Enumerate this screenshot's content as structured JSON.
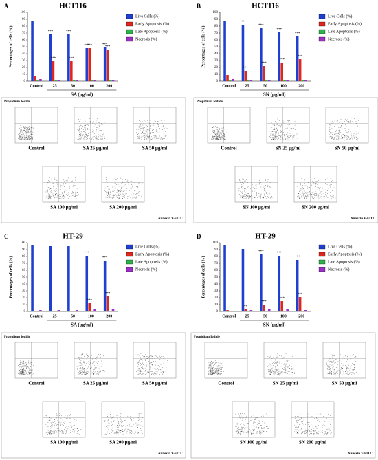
{
  "chart_data": [
    {
      "type": "bar",
      "panel": "A",
      "title": "HCT116",
      "y_label": "Percentages of cells (%)",
      "x_label": "SA (µg/ml)",
      "categories": [
        "Control",
        "25",
        "50",
        "100",
        "200"
      ],
      "ylim": [
        0,
        100
      ],
      "yticks": [
        0,
        10,
        20,
        30,
        40,
        50,
        60,
        70,
        80,
        90,
        100
      ],
      "series": [
        {
          "name": "Live Cells (%)",
          "color": "#1f3fd1",
          "values": [
            87,
            68,
            68,
            48,
            49
          ],
          "significance": [
            null,
            "***",
            "***",
            "***",
            "***"
          ]
        },
        {
          "name": "Early Apoptosis (%)",
          "color": "#e0261d",
          "values": [
            8,
            29,
            29,
            48,
            46
          ],
          "significance": [
            null,
            "***",
            "***",
            "***",
            "***"
          ]
        },
        {
          "name": "Late Apoptosis (%)",
          "color": "#2db34a",
          "values": [
            2,
            1,
            1,
            2,
            2
          ]
        },
        {
          "name": "Necrosis (%)",
          "color": "#9b2fc6",
          "values": [
            3,
            2,
            2,
            2,
            2
          ]
        }
      ]
    },
    {
      "type": "bar",
      "panel": "B",
      "title": "HCT116",
      "y_label": "Percentages of cells (%)",
      "x_label": "SN (µg/ml)",
      "categories": [
        "Control",
        "25",
        "50",
        "100",
        "200"
      ],
      "ylim": [
        0,
        100
      ],
      "yticks": [
        0,
        10,
        20,
        30,
        40,
        50,
        60,
        70,
        80,
        90,
        100
      ],
      "series": [
        {
          "name": "Live Cells (%)",
          "color": "#1f3fd1",
          "values": [
            87,
            82,
            77,
            71,
            65
          ],
          "significance": [
            null,
            "**",
            "***",
            "***",
            "***"
          ]
        },
        {
          "name": "Early Apoptosis (%)",
          "color": "#e0261d",
          "values": [
            9,
            15,
            22,
            27,
            32
          ],
          "significance": [
            null,
            "***",
            "***",
            "***",
            "***"
          ]
        },
        {
          "name": "Late Apoptosis (%)",
          "color": "#2db34a",
          "values": [
            1,
            1,
            1,
            1,
            1
          ]
        },
        {
          "name": "Necrosis (%)",
          "color": "#9b2fc6",
          "values": [
            3,
            2,
            1,
            1,
            1
          ]
        }
      ]
    },
    {
      "type": "bar",
      "panel": "C",
      "title": "HT-29",
      "y_label": "Percentages of cells (%)",
      "x_label": "SA (µg/ml)",
      "categories": [
        "Control",
        "25",
        "50",
        "100",
        "200"
      ],
      "ylim": [
        0,
        100
      ],
      "yticks": [
        0,
        10,
        20,
        30,
        40,
        50,
        60,
        70,
        80,
        90,
        100
      ],
      "series": [
        {
          "name": "Live Cells (%)",
          "color": "#1f3fd1",
          "values": [
            96,
            95,
            95,
            81,
            74
          ],
          "significance": [
            null,
            null,
            null,
            "***",
            "***"
          ]
        },
        {
          "name": "Early Apoptosis (%)",
          "color": "#e0261d",
          "values": [
            1,
            1,
            1,
            12,
            22
          ],
          "significance": [
            null,
            null,
            null,
            "***",
            "***"
          ]
        },
        {
          "name": "Late Apoptosis (%)",
          "color": "#2db34a",
          "values": [
            1,
            1,
            1,
            1,
            1
          ]
        },
        {
          "name": "Necrosis (%)",
          "color": "#9b2fc6",
          "values": [
            2,
            2,
            2,
            3,
            3
          ]
        }
      ]
    },
    {
      "type": "bar",
      "panel": "D",
      "title": "HT-29",
      "y_label": "Percentages of cells (%)",
      "x_label": "SN (µg/ml)",
      "categories": [
        "Control",
        "25",
        "50",
        "100",
        "200"
      ],
      "ylim": [
        0,
        100
      ],
      "yticks": [
        0,
        10,
        20,
        30,
        40,
        50,
        60,
        70,
        80,
        90,
        100
      ],
      "series": [
        {
          "name": "Live Cells (%)",
          "color": "#1f3fd1",
          "values": [
            96,
            91,
            83,
            81,
            75
          ],
          "significance": [
            null,
            null,
            "***",
            "***",
            "***"
          ]
        },
        {
          "name": "Early Apoptosis (%)",
          "color": "#e0261d",
          "values": [
            2,
            3,
            10,
            15,
            21
          ],
          "significance": [
            null,
            "**",
            "***",
            "***",
            "***"
          ]
        },
        {
          "name": "Late Apoptosis (%)",
          "color": "#2db34a",
          "values": [
            1,
            1,
            1,
            1,
            1
          ]
        },
        {
          "name": "Necrosis (%)",
          "color": "#9b2fc6",
          "values": [
            1,
            2,
            3,
            3,
            2
          ]
        }
      ]
    }
  ],
  "flow_cytometry": [
    {
      "y_label": "Propidium Iodide",
      "x_label": "Annexin V-FITC",
      "plots": [
        "Control",
        "SA 25 µg/ml",
        "SA 50 µg/ml",
        "SA 100 µg/ml",
        "SA 200 µg/ml"
      ]
    },
    {
      "y_label": "Propidium Iodide",
      "x_label": "Annexin V-FITC",
      "plots": [
        "Control",
        "SN 25 µg/ml",
        "SN 50 µg/ml",
        "SN 100 µg/ml",
        "SN 200 µg/ml"
      ]
    },
    {
      "y_label": "Propidium Iodide",
      "x_label": "Annexin V-FITC",
      "plots": [
        "Control",
        "SA 25 µg/ml",
        "SA 50 µg/ml",
        "SA 100 µg/ml",
        "SA 200 µg/ml"
      ]
    },
    {
      "y_label": "Propidium Iodide",
      "x_label": "Annexin V-FITC",
      "plots": [
        "Control",
        "SN 25 µg/ml",
        "SN 50 µg/ml",
        "SN 100 µg/ml",
        "SN 200 µg/ml"
      ]
    }
  ]
}
